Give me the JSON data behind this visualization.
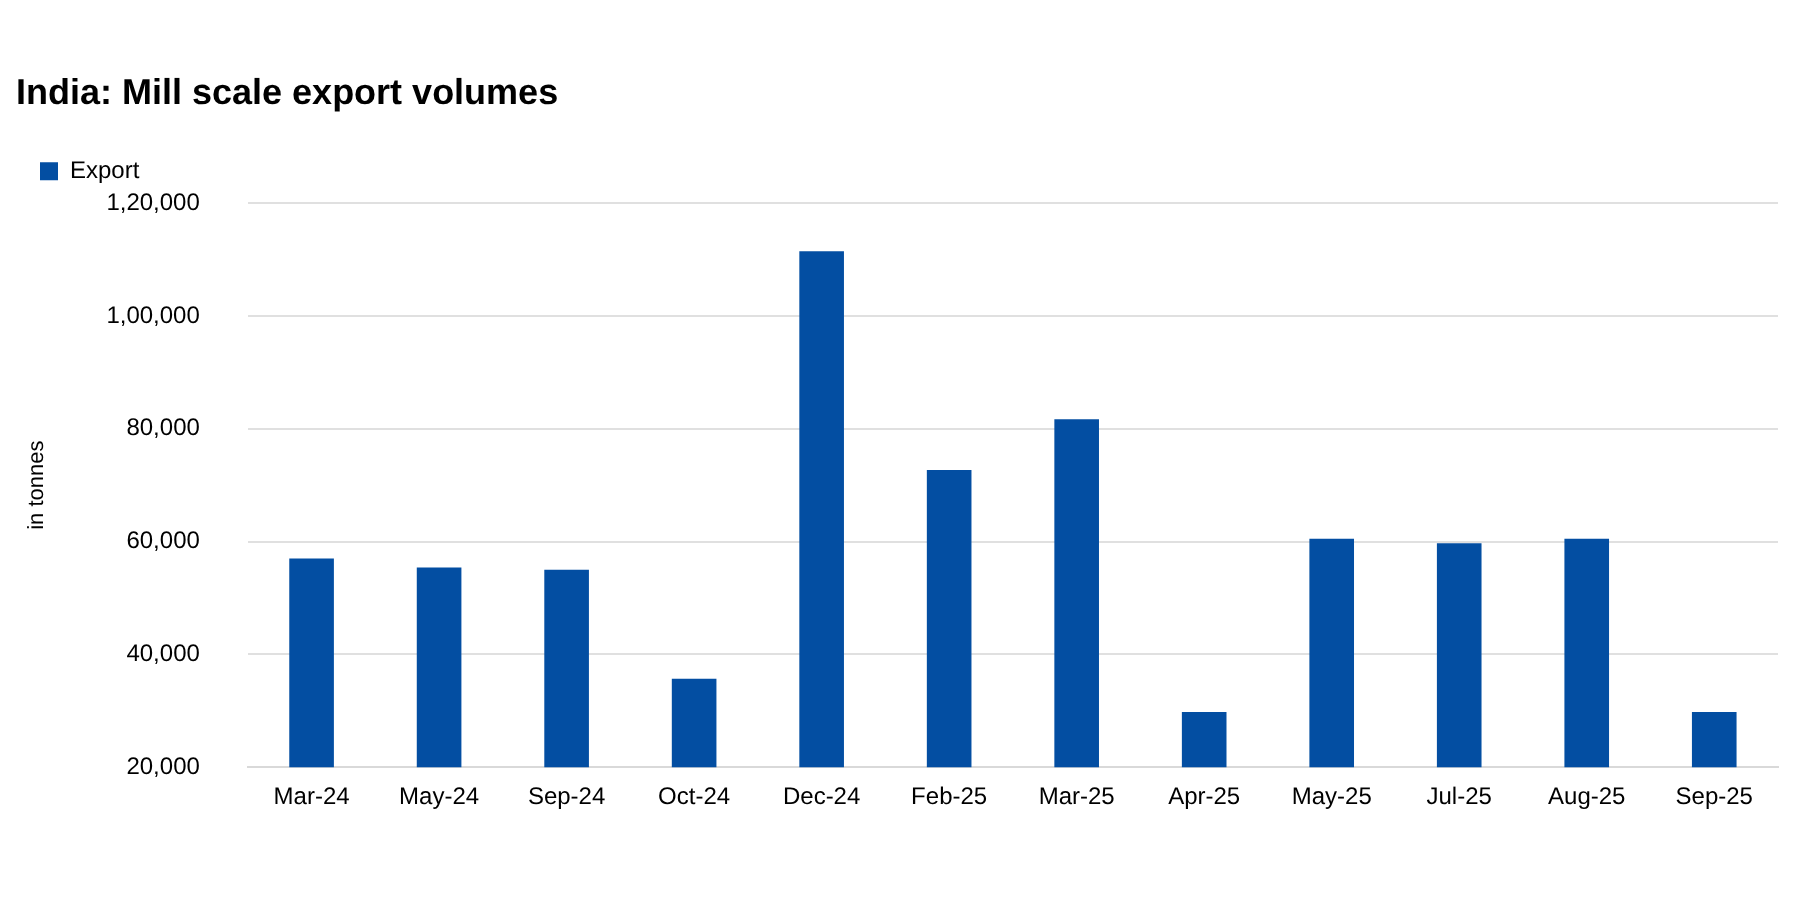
{
  "chart_data": {
    "type": "bar",
    "title": "India: Mill scale export volumes",
    "ylabel": "in tonnes",
    "categories": [
      "Mar-24",
      "May-24",
      "Sep-24",
      "Oct-24",
      "Dec-24",
      "Feb-25",
      "Mar-25",
      "Apr-25",
      "May-25",
      "Jul-25",
      "Aug-25",
      "Sep-25"
    ],
    "series": [
      {
        "name": "Export",
        "color": "#034ea2",
        "values": [
          57000,
          55400,
          55000,
          35700,
          111500,
          72700,
          81700,
          29800,
          60500,
          59700,
          60500,
          29800
        ]
      }
    ],
    "ylim": [
      20000,
      120000
    ],
    "yticks": [
      {
        "value": 20000,
        "label": "20,000"
      },
      {
        "value": 40000,
        "label": "40,000"
      },
      {
        "value": 60000,
        "label": "60,000"
      },
      {
        "value": 80000,
        "label": "80,000"
      },
      {
        "value": 100000,
        "label": "1,00,000"
      },
      {
        "value": 120000,
        "label": "1,20,000"
      }
    ],
    "grid": "y",
    "legend": "top left"
  }
}
